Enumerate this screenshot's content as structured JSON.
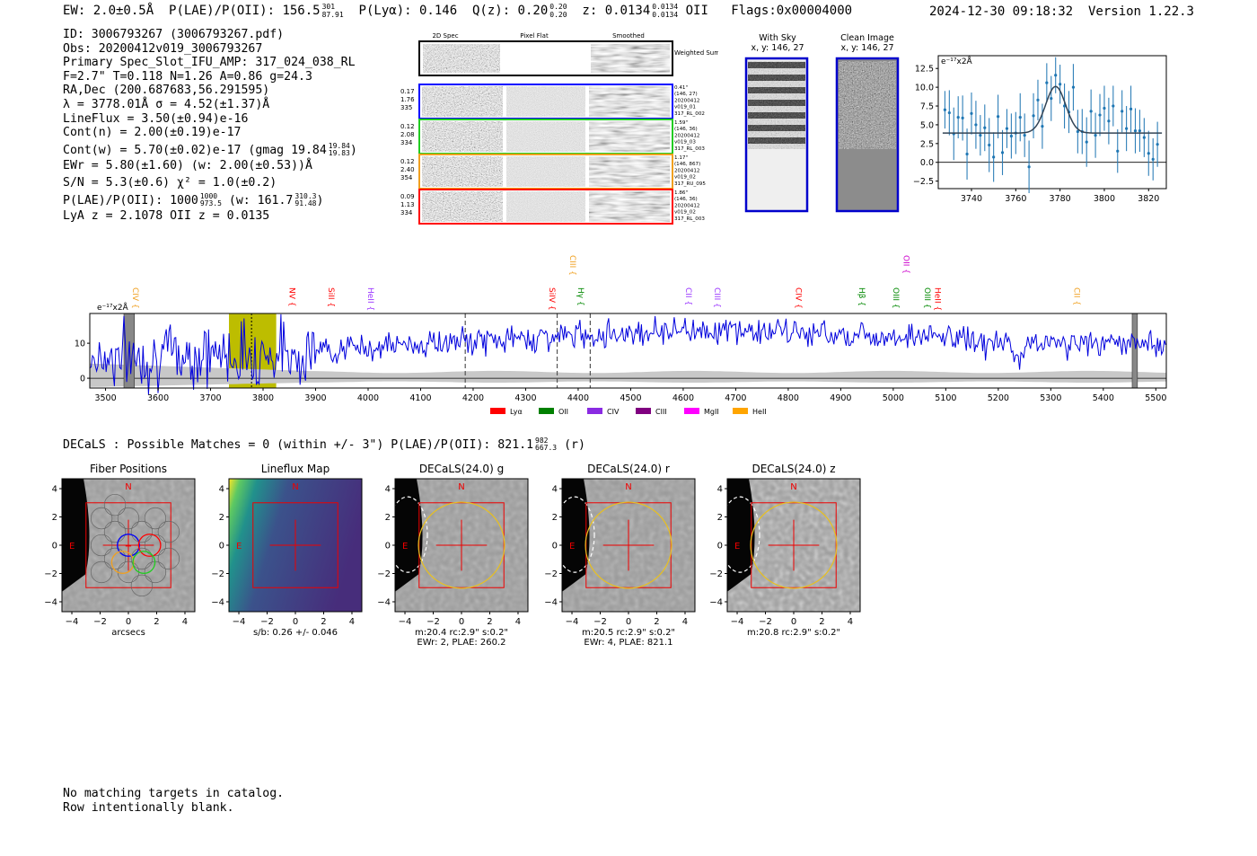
{
  "header": {
    "ew": "EW: 2.0±0.5Å",
    "plae": "P(LAE)/P(OII): 156.5",
    "plae_sup": "301",
    "plae_sub": "87.91",
    "plya": "P(Lyα): 0.146",
    "qz": "Q(z): 0.20",
    "qz_sup": "0.20",
    "qz_sub": "0.20",
    "z": "z: 0.0134",
    "z_sup": "0.0134",
    "z_sub": "0.0134",
    "z_line": "OII",
    "flags": "Flags:0x00004000",
    "date": "2024-12-30 09:18:32",
    "version": "Version 1.22.3"
  },
  "info": {
    "lines": [
      "ID: 3006793267 (3006793267.pdf)",
      "Obs: 20200412v019_3006793267",
      "Primary Spec_Slot_IFU_AMP: 317_024_038_RL",
      "F=2.7\"  T=0.118  N=1.26  A=0.86  g=24.3",
      "RA,Dec (200.687683,56.291595)",
      "λ = 3778.01Å  σ = 4.52(±1.37)Å",
      "LineFlux = 3.50(±0.94)e-16",
      "Cont(n) = 2.00(±0.19)e-17"
    ],
    "contw": "Cont(w) = 5.70(±0.02)e-17 (gmag 19.84",
    "contw_sup": "19.84",
    "contw_sub": "19.83",
    "ewr": "EWr = 5.80(±1.60) (w: 2.00(±0.53))Å",
    "sn": "S/N = 5.3(±0.6)  χ² = 1.0(±0.2)",
    "plae": "P(LAE)/P(OII): 1000",
    "plae_sup": "1000",
    "plae_sub": "973.5",
    "plae_w": "(w: 161.7",
    "plae_w_sup": "310.3",
    "plae_w_sub": "91.48",
    "lya": "LyA z = 2.1078   OII z = 0.0135"
  },
  "cutouts": {
    "col_titles": [
      "2D Spec",
      "Pixel Flat",
      "Smoothed"
    ],
    "sum_label": "Weighted Sum",
    "rows": [
      {
        "color": "#0000ff",
        "left": [
          "0.17",
          "1.76",
          "335"
        ],
        "right": [
          "0.41\"",
          "(146, 27)",
          "20200412",
          "v019_01",
          "317_RL_002"
        ]
      },
      {
        "color": "#22cc22",
        "left": [
          "0.12",
          "2.08",
          "334"
        ],
        "right": [
          "1.59\"",
          "(146, 36)",
          "20200412",
          "v019_03",
          "317_RL_003"
        ]
      },
      {
        "color": "#f0a020",
        "left": [
          "0.12",
          "2.40",
          "354"
        ],
        "right": [
          "1.17\"",
          "(146, 867)",
          "20200412",
          "v019_02",
          "317_RU_095"
        ]
      },
      {
        "color": "#ff0000",
        "left": [
          "0.09",
          "1.13",
          "334"
        ],
        "right": [
          "1.86\"",
          "(146, 36)",
          "20200412",
          "v019_02",
          "317_RL_003"
        ]
      }
    ]
  },
  "sky": {
    "with_sky": "With Sky",
    "with_sky_xy": "x, y: 146, 27",
    "clean": "Clean Image",
    "clean_xy": "x, y: 146, 27"
  },
  "chart_data": [
    {
      "type": "scatter",
      "name": "line-fit",
      "title": "",
      "unit_label": "e⁻¹⁷x2Å",
      "xlim": [
        3725,
        3828
      ],
      "ylim": [
        -3.5,
        14.2
      ],
      "xticks": [
        3740,
        3760,
        3780,
        3800,
        3820
      ],
      "yticks": [
        -2.5,
        0.0,
        2.5,
        5.0,
        7.5,
        10.0,
        12.5
      ],
      "ytick_labels": [
        "−2.5",
        "0.0",
        "2.5",
        "5.0",
        "7.5",
        "10.0",
        "12.5"
      ],
      "fit": {
        "center": 3778.0,
        "sigma": 4.52,
        "amp": 6.2,
        "base": 3.9,
        "x0": 3727,
        "x1": 3826
      },
      "points": [
        [
          3728,
          7.0,
          2.5
        ],
        [
          3730,
          6.6,
          3.0
        ],
        [
          3732,
          3.8,
          3.5
        ],
        [
          3734,
          6.0,
          2.8
        ],
        [
          3736,
          5.9,
          3.0
        ],
        [
          3738,
          1.1,
          3.4
        ],
        [
          3740,
          6.5,
          2.8
        ],
        [
          3742,
          5.0,
          3.2
        ],
        [
          3744,
          3.6,
          2.7
        ],
        [
          3746,
          4.6,
          3.1
        ],
        [
          3748,
          2.3,
          3.6
        ],
        [
          3750,
          0.7,
          3.3
        ],
        [
          3752,
          6.1,
          2.9
        ],
        [
          3754,
          1.3,
          3.0
        ],
        [
          3756,
          4.5,
          2.6
        ],
        [
          3758,
          3.5,
          3.0
        ],
        [
          3760,
          3.9,
          2.8
        ],
        [
          3762,
          6.0,
          3.2
        ],
        [
          3764,
          3.6,
          2.9
        ],
        [
          3766,
          -0.6,
          3.5
        ],
        [
          3768,
          6.2,
          3.0
        ],
        [
          3770,
          8.3,
          2.7
        ],
        [
          3772,
          4.8,
          3.0
        ],
        [
          3774,
          10.6,
          2.6
        ],
        [
          3776,
          8.5,
          3.0
        ],
        [
          3778,
          11.6,
          2.4
        ],
        [
          3780,
          10.4,
          2.6
        ],
        [
          3782,
          7.5,
          3.0
        ],
        [
          3784,
          6.7,
          2.8
        ],
        [
          3786,
          10.0,
          3.1
        ],
        [
          3788,
          4.1,
          2.9
        ],
        [
          3790,
          4.1,
          3.0
        ],
        [
          3792,
          2.7,
          3.3
        ],
        [
          3794,
          6.8,
          2.9
        ],
        [
          3796,
          3.6,
          3.0
        ],
        [
          3798,
          6.3,
          2.8
        ],
        [
          3800,
          7.2,
          3.0
        ],
        [
          3802,
          5.5,
          3.1
        ],
        [
          3804,
          7.5,
          2.7
        ],
        [
          3806,
          1.5,
          2.9
        ],
        [
          3808,
          6.8,
          2.8
        ],
        [
          3810,
          4.5,
          3.0
        ],
        [
          3812,
          7.1,
          3.1
        ],
        [
          3814,
          4.2,
          3.0
        ],
        [
          3816,
          4.2,
          2.8
        ],
        [
          3818,
          3.3,
          2.6
        ],
        [
          3820,
          1.2,
          3.0
        ],
        [
          3822,
          0.4,
          2.8
        ],
        [
          3824,
          2.4,
          3.0
        ]
      ]
    },
    {
      "type": "line",
      "name": "full-spectrum",
      "unit_label": "e⁻¹⁷x2Å",
      "xlim": [
        3470,
        5520
      ],
      "ylim": [
        -2.8,
        18.5
      ],
      "xticks": [
        3500,
        3600,
        3700,
        3800,
        3900,
        4000,
        4100,
        4200,
        4300,
        4400,
        4500,
        4600,
        4700,
        4800,
        4900,
        5000,
        5100,
        5200,
        5300,
        5400,
        5500
      ],
      "yticks": [
        0,
        10
      ],
      "highlight": [
        3735,
        3825
      ],
      "marked_line": 3778,
      "dashed_lines": [
        4185,
        4360,
        4423
      ],
      "hatched": [
        [
          3535,
          3555
        ],
        [
          5455,
          5465
        ]
      ],
      "seed": 7,
      "line_labels": [
        {
          "name": "CIV",
          "x": 3552,
          "color": "#f0a020",
          "row": 1
        },
        {
          "name": "NV",
          "x": 3850,
          "color": "#ff0000",
          "row": 1
        },
        {
          "name": "SiII",
          "x": 3925,
          "color": "#ff0000",
          "row": 1
        },
        {
          "name": "HeII",
          "x": 4000,
          "color": "#9933ff",
          "row": 1
        },
        {
          "name": "SiIV",
          "x": 4345,
          "color": "#ff0000",
          "row": 1
        },
        {
          "name": "CIII",
          "x": 4385,
          "color": "#f0a020",
          "row": 0
        },
        {
          "name": "Hγ",
          "x": 4400,
          "color": "#008800",
          "row": 1
        },
        {
          "name": "CII",
          "x": 4605,
          "color": "#9933ff",
          "row": 1
        },
        {
          "name": "CIII",
          "x": 4660,
          "color": "#9933ff",
          "row": 1
        },
        {
          "name": "CIV",
          "x": 4815,
          "color": "#ff0000",
          "row": 1
        },
        {
          "name": "Hβ",
          "x": 4935,
          "color": "#008800",
          "row": 1
        },
        {
          "name": "OII",
          "x": 5020,
          "color": "#cc00cc",
          "row": 0
        },
        {
          "name": "OIII",
          "x": 5000,
          "color": "#008800",
          "row": 1
        },
        {
          "name": "OIII",
          "x": 5060,
          "color": "#008800",
          "row": 1
        },
        {
          "name": "HeII",
          "x": 5080,
          "color": "#ff0000",
          "row": 1
        },
        {
          "name": "CII",
          "x": 5345,
          "color": "#f0a020",
          "row": 1
        }
      ],
      "legend": [
        {
          "name": "Lyα",
          "color": "#ff0000"
        },
        {
          "name": "OII",
          "color": "#008000"
        },
        {
          "name": "CIV",
          "color": "#8a2be2"
        },
        {
          "name": "CIII",
          "color": "#800080"
        },
        {
          "name": "MgII",
          "color": "#ff00ff"
        },
        {
          "name": "HeII",
          "color": "#ffa500"
        }
      ]
    }
  ],
  "decals": {
    "summary": "DECaLS : Possible Matches = 0 (within +/- 3\")  P(LAE)/P(OII): 821.1",
    "summary_sup": "982",
    "summary_sub": "667.3",
    "summary_band": "(r)",
    "north": "N",
    "east": "E",
    "ticks": [
      "−4",
      "−2",
      "0",
      "2",
      "4"
    ],
    "yticks": [
      "4",
      "2",
      "0",
      "−2",
      "−4"
    ],
    "panels": [
      {
        "title": "Fiber Positions",
        "cap1": "arcsecs",
        "cap2": ""
      },
      {
        "title": "Lineflux Map",
        "cap1": "s/b: 0.26 +/- 0.046",
        "cap2": ""
      },
      {
        "title": "DECaLS(24.0) g",
        "cap1": "m:20.4 rc:2.9\"  s:0.2\"",
        "cap2": "EWr: 2, PLAE: 260.2"
      },
      {
        "title": "DECaLS(24.0) r",
        "cap1": "m:20.5 rc:2.9\"  s:0.2\"",
        "cap2": "EWr: 4, PLAE: 821.1"
      },
      {
        "title": "DECaLS(24.0) z",
        "cap1": "m:20.8 rc:2.9\"  s:0.2\"",
        "cap2": ""
      }
    ]
  },
  "footer": {
    "line1": "No matching targets in catalog.",
    "line2": "Row intentionally blank."
  }
}
